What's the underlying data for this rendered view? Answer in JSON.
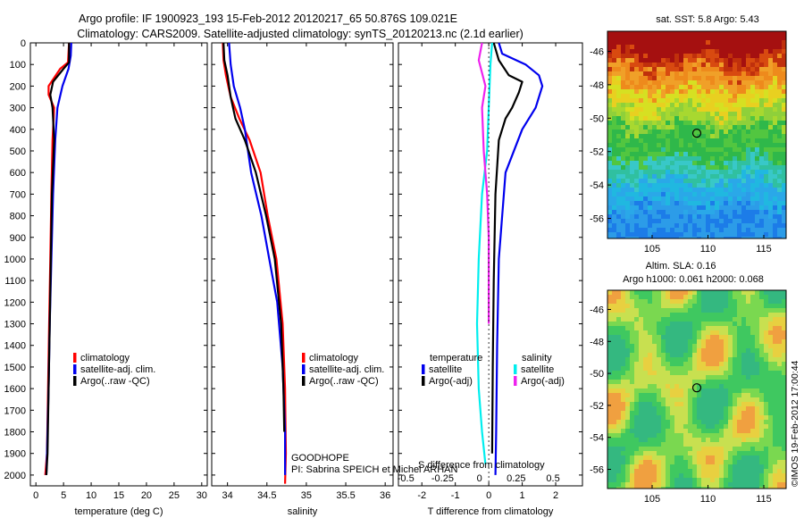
{
  "title": {
    "line1": "Argo profile: IF 1900923_193 15-Feb-2012 20120217_65 50.876S 109.021E",
    "line2": "Climatology: CARS2009. Satellite-adjusted climatology: synTS_20120213.nc (2.1d earlier)"
  },
  "colors": {
    "climatology": "#ff0000",
    "satellite": "#0000ee",
    "argo": "#000000",
    "salinity_satellite": "#00eeee",
    "salinity_argo": "#ee22ee"
  },
  "chart_data": [
    {
      "type": "line",
      "xlabel": "temperature (deg C)",
      "xlim": [
        -1,
        31
      ],
      "xticks": [
        "0",
        "5",
        "10",
        "15",
        "20",
        "25",
        "30"
      ],
      "ylim": [
        0,
        2050
      ],
      "yticks": [
        "0",
        "100",
        "200",
        "300",
        "400",
        "500",
        "600",
        "700",
        "800",
        "900",
        "1000",
        "1100",
        "1200",
        "1300",
        "1400",
        "1500",
        "1600",
        "1700",
        "1800",
        "1900",
        "2000"
      ],
      "legend": [
        "climatology",
        "satellite-adj. clim.",
        "Argo(..raw -QC)"
      ],
      "series": [
        {
          "name": "climatology",
          "color": "#ff0000",
          "x": [
            6.0,
            5.8,
            4.4,
            2.3,
            2.3,
            3.3,
            3.0,
            2.8,
            2.6,
            2.4,
            2.2,
            2.0,
            1.7
          ],
          "y": [
            0,
            90,
            120,
            200,
            240,
            300,
            450,
            700,
            1000,
            1300,
            1600,
            1900,
            2000
          ]
        },
        {
          "name": "satellite-adj. clim.",
          "color": "#0000ee",
          "x": [
            6.4,
            6.3,
            5.9,
            4.8,
            3.9,
            3.5,
            3.1,
            2.8,
            2.5,
            2.3,
            2.0,
            1.9
          ],
          "y": [
            0,
            60,
            120,
            200,
            300,
            450,
            700,
            1000,
            1300,
            1600,
            1900,
            2000
          ]
        },
        {
          "name": "Argo(..raw -QC)",
          "color": "#000000",
          "x": [
            6.0,
            6.0,
            5.0,
            3.1,
            2.6,
            3.0,
            3.3,
            2.9,
            2.7,
            2.5,
            2.3,
            2.1,
            1.9
          ],
          "y": [
            0,
            90,
            120,
            180,
            240,
            300,
            450,
            700,
            1000,
            1300,
            1600,
            1900,
            2000
          ]
        }
      ]
    },
    {
      "type": "line",
      "xlabel": "salinity",
      "xlim": [
        33.8,
        36.1
      ],
      "xticks": [
        "34",
        "34.5",
        "35",
        "35.5",
        "36"
      ],
      "ylim": [
        0,
        2050
      ],
      "legend": [
        "climatology",
        "satellite-adj. clim.",
        "Argo(..raw -QC)"
      ],
      "annotation": [
        "GOODHOPE",
        "PI: Sabrina SPEICH et Michel ARHAN"
      ],
      "series": [
        {
          "name": "climatology",
          "color": "#ff0000",
          "x": [
            33.94,
            33.95,
            33.98,
            34.04,
            34.15,
            34.28,
            34.42,
            34.51,
            34.62,
            34.7,
            34.73,
            34.74,
            34.73
          ],
          "y": [
            0,
            80,
            150,
            250,
            350,
            450,
            600,
            800,
            1000,
            1300,
            1600,
            1900,
            2040
          ]
        },
        {
          "name": "satellite-adj. clim.",
          "color": "#0000ee",
          "x": [
            34.02,
            34.04,
            34.08,
            34.16,
            34.22,
            34.3,
            34.43,
            34.53,
            34.63,
            34.7,
            34.73,
            34.73
          ],
          "y": [
            0,
            100,
            200,
            300,
            400,
            600,
            800,
            1000,
            1200,
            1500,
            1800,
            2000
          ]
        },
        {
          "name": "Argo(..raw -QC)",
          "color": "#000000",
          "x": [
            33.95,
            33.96,
            34.0,
            34.04,
            34.1,
            34.22,
            34.36,
            34.49,
            34.6,
            34.68,
            34.71,
            34.72
          ],
          "y": [
            0,
            80,
            150,
            250,
            350,
            450,
            600,
            800,
            1000,
            1300,
            1600,
            1800
          ]
        }
      ]
    },
    {
      "type": "line",
      "xlabel": "T difference from climatology",
      "xlabel_top": "S difference from climatology",
      "xlim": [
        -2.7,
        2.8
      ],
      "xticks": [
        "-2",
        "-1",
        "0",
        "1",
        "2"
      ],
      "xticks_top": [
        "-0.5",
        "-0.25",
        "0",
        "0.25",
        "0.5"
      ],
      "ylim": [
        0,
        2050
      ],
      "legend_temperature": {
        "heading": "temperature",
        "items": [
          "satellite",
          "Argo(-adj)"
        ]
      },
      "legend_salinity": {
        "heading": "salinity",
        "items": [
          "satellite",
          "Argo(-adj)"
        ]
      },
      "series": [
        {
          "name": "temperature satellite",
          "color": "#0000ee",
          "x": [
            0.3,
            0.4,
            1.1,
            1.5,
            1.6,
            1.4,
            1.0,
            0.5,
            0.3,
            0.25,
            0.22,
            0.2
          ],
          "y": [
            0,
            50,
            100,
            150,
            200,
            300,
            400,
            600,
            1000,
            1400,
            1800,
            2000
          ]
        },
        {
          "name": "temperature Argo(-adj)",
          "color": "#000000",
          "x": [
            0.15,
            0.3,
            0.6,
            1.0,
            0.9,
            0.7,
            0.5,
            0.3,
            0.2,
            0.15,
            0.12,
            0.1
          ],
          "y": [
            0,
            80,
            150,
            180,
            230,
            300,
            350,
            450,
            700,
            1100,
            1500,
            1900
          ]
        },
        {
          "name": "salinity satellite",
          "color": "#00eeee",
          "x": [
            0.1,
            0.05,
            0.0,
            -0.05,
            -0.2,
            -0.3,
            -0.35,
            -0.3,
            -0.2,
            -0.1
          ],
          "y": [
            0,
            100,
            300,
            500,
            700,
            1000,
            1300,
            1600,
            1800,
            1950
          ]
        },
        {
          "name": "salinity Argo(-adj)",
          "color": "#ee22ee",
          "x": [
            -0.2,
            -0.3,
            -0.1,
            -0.2,
            -0.15,
            -0.05,
            0.0,
            0.0,
            0.0
          ],
          "y": [
            0,
            80,
            200,
            300,
            500,
            700,
            900,
            1100,
            1300
          ]
        }
      ]
    },
    {
      "type": "heatmap",
      "title": "sat. SST: 5.8 Argo: 5.43",
      "xlim": [
        101,
        117
      ],
      "ylim": [
        -57.2,
        -44.8
      ],
      "xticks": [
        "105",
        "110",
        "115"
      ],
      "yticks": [
        "-46",
        "-48",
        "-50",
        "-52",
        "-54",
        "-56"
      ],
      "marker": {
        "lon": 109.0,
        "lat": -50.9
      }
    },
    {
      "type": "heatmap",
      "title_lines": [
        "Altim. SLA: 0.16",
        "Argo h1000: 0.061 h2000: 0.068"
      ],
      "xlim": [
        101,
        117
      ],
      "ylim": [
        -57.2,
        -44.8
      ],
      "xticks": [
        "105",
        "110",
        "115"
      ],
      "yticks": [
        "-46",
        "-48",
        "-50",
        "-52",
        "-54",
        "-56"
      ],
      "marker": {
        "lon": 109.0,
        "lat": -50.9
      }
    }
  ],
  "footer_stamp": "©IMOS 19-Feb-2012 17:00:44"
}
